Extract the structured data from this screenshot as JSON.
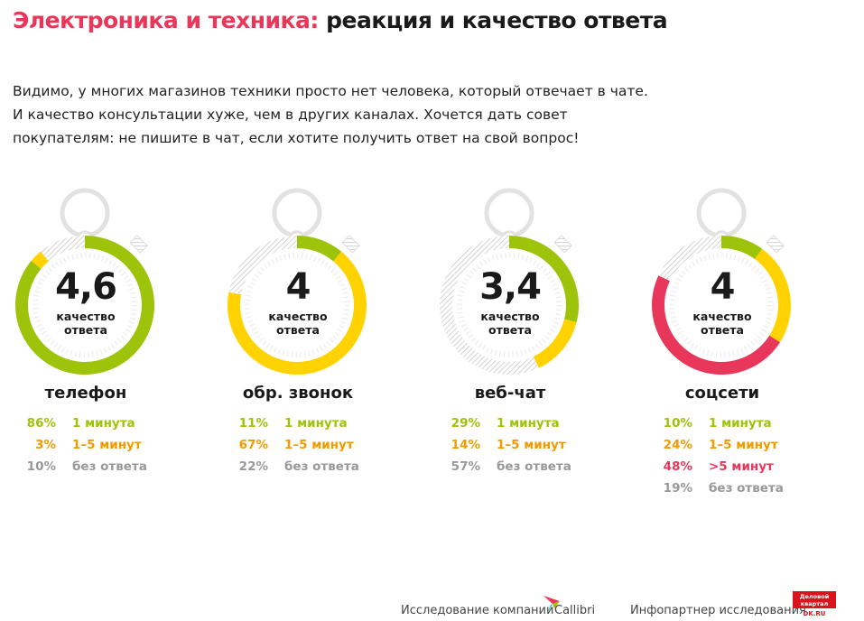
{
  "title": {
    "highlight": "Электроника и техника:",
    "rest": " реакция и качество ответа"
  },
  "intro": [
    "Видимо, у многих магазинов техники просто нет человека, который отвечает в чате.",
    "И качество консультации хуже, чем в других каналах. Хочется дать совет",
    "покупателям: не пишите в чат, если хотите получить ответ на свой вопрос!"
  ],
  "colors": {
    "green": "#9dc30a",
    "yellow": "#ffd200",
    "orange": "#f39a00",
    "red": "#e8375a",
    "gray": "#999999",
    "title": "#e8375a"
  },
  "score_label": "качество ответа",
  "charts": [
    {
      "name": "телефон",
      "score": "4,6",
      "segments": [
        {
          "pct": "86%",
          "value": 86,
          "label": "1 минута",
          "color": "green",
          "text": "green"
        },
        {
          "pct": "3%",
          "value": 3,
          "label": "1–5 минут",
          "color": "yellow",
          "text": "orange"
        },
        {
          "pct": "10%",
          "value": 10,
          "label": "без ответа",
          "color": "hatch",
          "text": "gray"
        }
      ]
    },
    {
      "name": "обр. звонок",
      "score": "4",
      "segments": [
        {
          "pct": "11%",
          "value": 11,
          "label": "1 минута",
          "color": "green",
          "text": "green"
        },
        {
          "pct": "67%",
          "value": 67,
          "label": "1–5 минут",
          "color": "yellow",
          "text": "orange"
        },
        {
          "pct": "22%",
          "value": 22,
          "label": "без ответа",
          "color": "hatch",
          "text": "gray"
        }
      ]
    },
    {
      "name": "веб-чат",
      "score": "3,4",
      "segments": [
        {
          "pct": "29%",
          "value": 29,
          "label": "1 минута",
          "color": "green",
          "text": "green"
        },
        {
          "pct": "14%",
          "value": 14,
          "label": "1–5 минут",
          "color": "yellow",
          "text": "orange"
        },
        {
          "pct": "57%",
          "value": 57,
          "label": "без ответа",
          "color": "hatch",
          "text": "gray"
        }
      ]
    },
    {
      "name": "соцсети",
      "score": "4",
      "segments": [
        {
          "pct": "10%",
          "value": 10,
          "label": "1 минута",
          "color": "green",
          "text": "green"
        },
        {
          "pct": "24%",
          "value": 24,
          "label": "1–5 минут",
          "color": "yellow",
          "text": "orange"
        },
        {
          "pct": "48%",
          "value": 48,
          "label": ">5 минут",
          "color": "red",
          "text": "red"
        },
        {
          "pct": "19%",
          "value": 19,
          "label": "без ответа",
          "color": "hatch",
          "text": "gray"
        }
      ]
    }
  ],
  "footer": {
    "research": "Исследование компании",
    "callibri": "Callibri",
    "partner": "Инфопартнер исследования",
    "dk_logo": "Деловой квартал",
    "dk_url": "DK.RU"
  }
}
